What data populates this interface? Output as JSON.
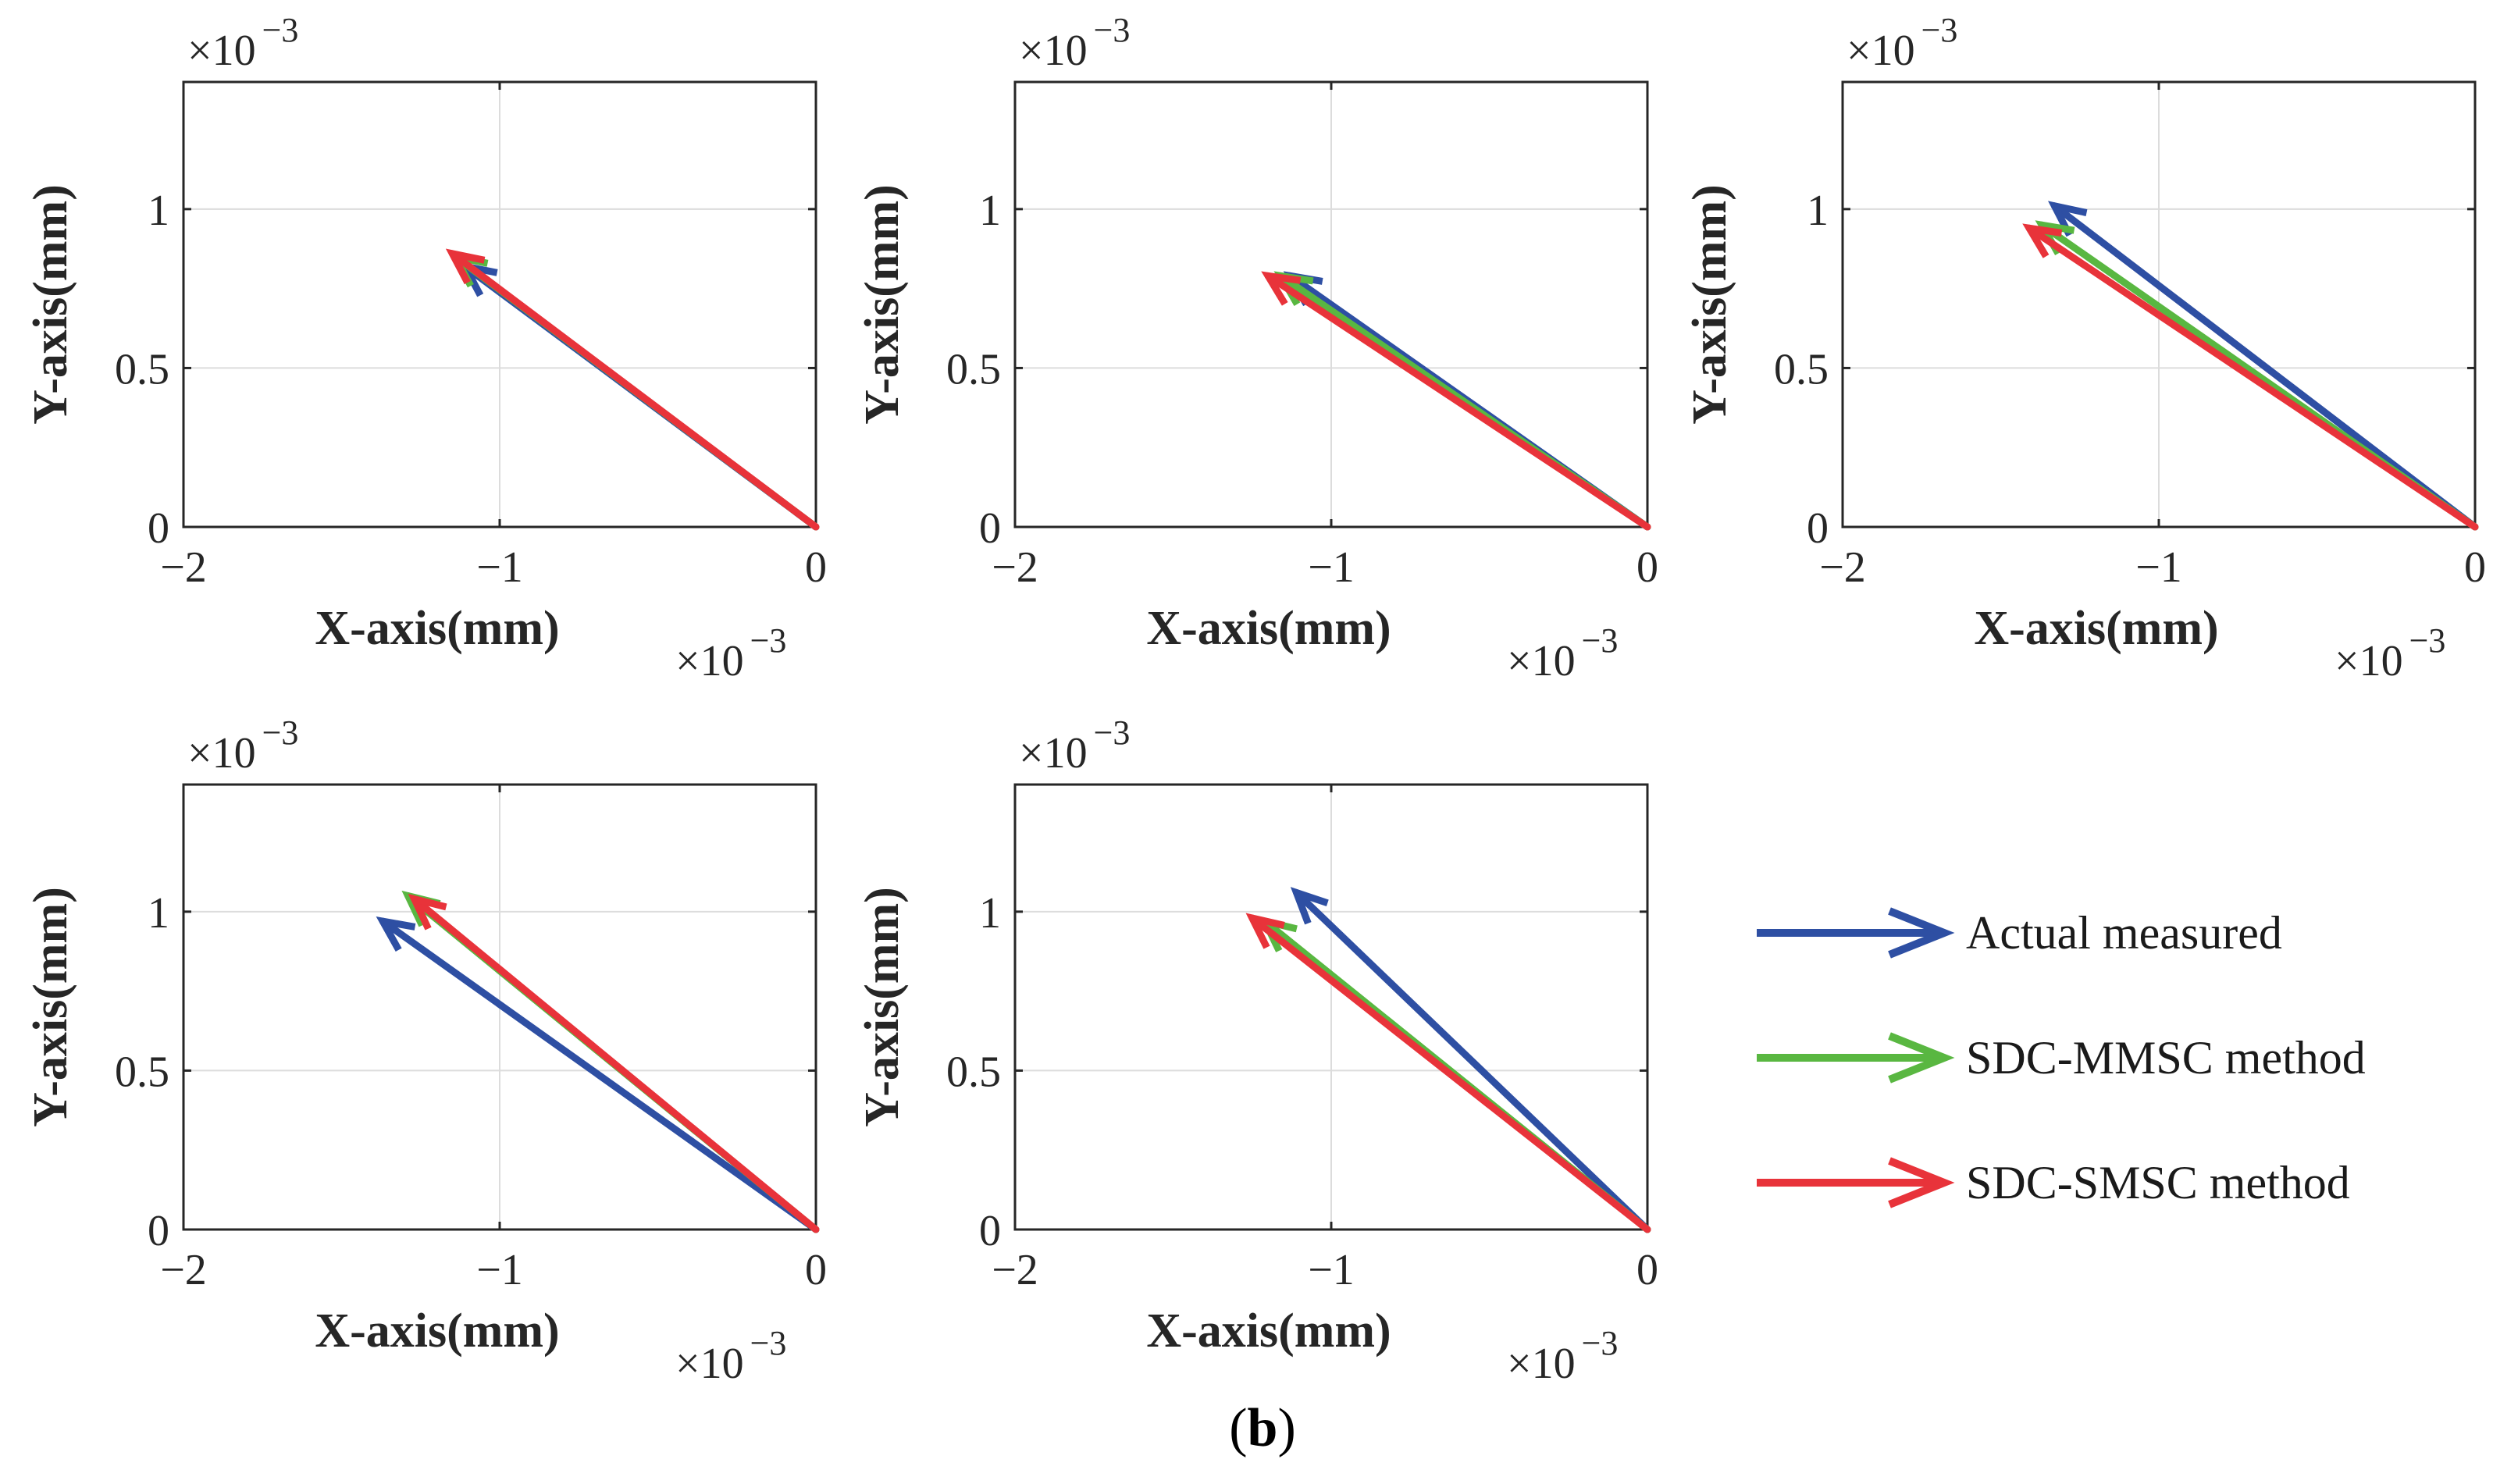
{
  "chart_data": [
    {
      "type": "quiver",
      "xlabel": "X-axis(mm)",
      "ylabel": "Y-axis(mm)",
      "xlim": [
        -0.002,
        0
      ],
      "ylim": [
        0,
        0.0014
      ],
      "x_ticks": [
        -2,
        -1,
        0
      ],
      "y_ticks": [
        0,
        0.5,
        1
      ],
      "x_tick_labels": [
        "−2",
        "−1",
        "0"
      ],
      "y_tick_labels": [
        "0",
        "0.5",
        "1"
      ],
      "x_exponent": "×10",
      "y_exponent": "×10",
      "exponent_power": "−3",
      "grid": true,
      "series": [
        {
          "name": "Actual measured",
          "color": "#2e4fa3",
          "origin": [
            0,
            0
          ],
          "vector": [
            -0.00111,
            0.00082
          ]
        },
        {
          "name": "SDC-MMSC method",
          "color": "#59b741",
          "origin": [
            0,
            0
          ],
          "vector": [
            -0.00114,
            0.00085
          ]
        },
        {
          "name": "SDC-SMSC method",
          "color": "#e8333a",
          "origin": [
            0,
            0
          ],
          "vector": [
            -0.00115,
            0.00086
          ]
        }
      ]
    },
    {
      "type": "quiver",
      "xlabel": "X-axis(mm)",
      "ylabel": "Y-axis(mm)",
      "xlim": [
        -0.002,
        0
      ],
      "ylim": [
        0,
        0.0014
      ],
      "x_ticks": [
        -2,
        -1,
        0
      ],
      "y_ticks": [
        0,
        0.5,
        1
      ],
      "x_tick_labels": [
        "−2",
        "−1",
        "0"
      ],
      "y_tick_labels": [
        "0",
        "0.5",
        "1"
      ],
      "x_exponent": "×10",
      "y_exponent": "×10",
      "exponent_power": "−3",
      "grid": true,
      "series": [
        {
          "name": "Actual measured",
          "color": "#2e4fa3",
          "origin": [
            0,
            0
          ],
          "vector": [
            -0.00113,
            0.00079
          ]
        },
        {
          "name": "SDC-MMSC method",
          "color": "#59b741",
          "origin": [
            0,
            0
          ],
          "vector": [
            -0.00116,
            0.00079
          ]
        },
        {
          "name": "SDC-SMSC method",
          "color": "#e8333a",
          "origin": [
            0,
            0
          ],
          "vector": [
            -0.0012,
            0.00079
          ]
        }
      ]
    },
    {
      "type": "quiver",
      "xlabel": "X-axis(mm)",
      "ylabel": "Y-axis(mm)",
      "xlim": [
        -0.002,
        0
      ],
      "ylim": [
        0,
        0.0014
      ],
      "x_ticks": [
        -2,
        -1,
        0
      ],
      "y_ticks": [
        0,
        0.5,
        1
      ],
      "x_tick_labels": [
        "−2",
        "−1",
        "0"
      ],
      "y_tick_labels": [
        "0",
        "0.5",
        "1"
      ],
      "x_exponent": "×10",
      "y_exponent": "×10",
      "exponent_power": "−3",
      "grid": true,
      "series": [
        {
          "name": "Actual measured",
          "color": "#2e4fa3",
          "origin": [
            0,
            0
          ],
          "vector": [
            -0.00133,
            0.00101
          ]
        },
        {
          "name": "SDC-MMSC method",
          "color": "#59b741",
          "origin": [
            0,
            0
          ],
          "vector": [
            -0.00137,
            0.00095
          ]
        },
        {
          "name": "SDC-SMSC method",
          "color": "#e8333a",
          "origin": [
            0,
            0
          ],
          "vector": [
            -0.00141,
            0.00094
          ]
        }
      ]
    },
    {
      "type": "quiver",
      "xlabel": "X-axis(mm)",
      "ylabel": "Y-axis(mm)",
      "xlim": [
        -0.002,
        0
      ],
      "ylim": [
        0,
        0.0014
      ],
      "x_ticks": [
        -2,
        -1,
        0
      ],
      "y_ticks": [
        0,
        0.5,
        1
      ],
      "x_tick_labels": [
        "−2",
        "−1",
        "0"
      ],
      "y_tick_labels": [
        "0",
        "0.5",
        "1"
      ],
      "x_exponent": "×10",
      "y_exponent": "×10",
      "exponent_power": "−3",
      "grid": true,
      "series": [
        {
          "name": "Actual measured",
          "color": "#2e4fa3",
          "origin": [
            0,
            0
          ],
          "vector": [
            -0.00137,
            0.00097
          ]
        },
        {
          "name": "SDC-MMSC method",
          "color": "#59b741",
          "origin": [
            0,
            0
          ],
          "vector": [
            -0.00129,
            0.00105
          ]
        },
        {
          "name": "SDC-SMSC method",
          "color": "#e8333a",
          "origin": [
            0,
            0
          ],
          "vector": [
            -0.00127,
            0.00104
          ]
        }
      ]
    },
    {
      "type": "quiver",
      "xlabel": "X-axis(mm)",
      "ylabel": "Y-axis(mm)",
      "xlim": [
        -0.002,
        0
      ],
      "ylim": [
        0,
        0.0014
      ],
      "x_ticks": [
        -2,
        -1,
        0
      ],
      "y_ticks": [
        0,
        0.5,
        1
      ],
      "x_tick_labels": [
        "−2",
        "−1",
        "0"
      ],
      "y_tick_labels": [
        "0",
        "0.5",
        "1"
      ],
      "x_exponent": "×10",
      "y_exponent": "×10",
      "exponent_power": "−3",
      "grid": true,
      "series": [
        {
          "name": "Actual measured",
          "color": "#2e4fa3",
          "origin": [
            0,
            0
          ],
          "vector": [
            -0.00111,
            0.00106
          ]
        },
        {
          "name": "SDC-MMSC method",
          "color": "#59b741",
          "origin": [
            0,
            0
          ],
          "vector": [
            -0.00121,
            0.00097
          ]
        },
        {
          "name": "SDC-SMSC method",
          "color": "#e8333a",
          "origin": [
            0,
            0
          ],
          "vector": [
            -0.00125,
            0.00098
          ]
        }
      ]
    }
  ],
  "legend": {
    "placement": "right",
    "items": [
      {
        "label": "Actual measured",
        "color": "#2e4fa3"
      },
      {
        "label": "SDC-MMSC method",
        "color": "#59b741"
      },
      {
        "label": "SDC-SMSC method",
        "color": "#e8333a"
      }
    ]
  },
  "caption": {
    "open": "(",
    "letter": "b",
    "close": ")"
  }
}
